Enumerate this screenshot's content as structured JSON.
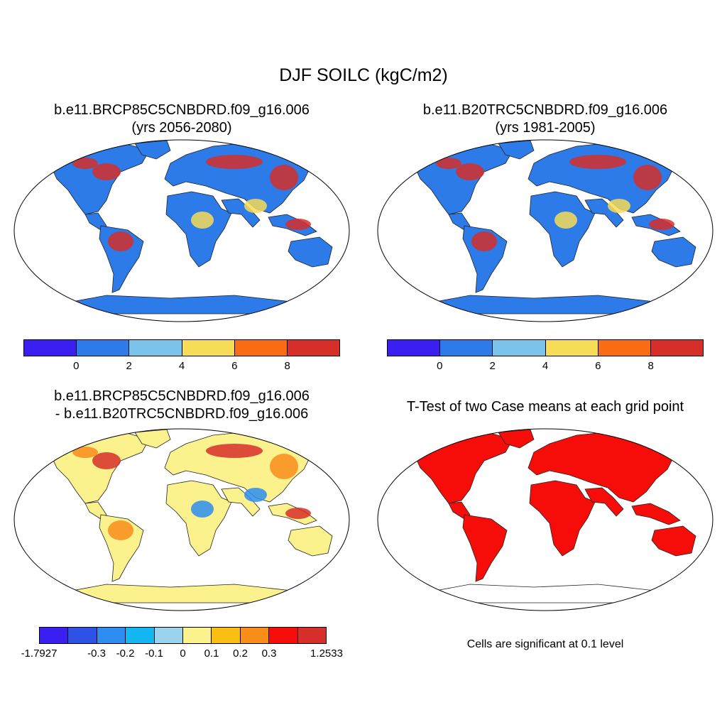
{
  "main_title": "DJF SOILC (kgC/m2)",
  "panels": [
    {
      "title_line1": "b.e11.BRCP85C5CNBDRD.f09_g16.006",
      "title_line2": "(yrs 2056-2080)"
    },
    {
      "title_line1": "b.e11.B20TRC5CNBDRD.f09_g16.006",
      "title_line2": "(yrs 1981-2005)"
    },
    {
      "title_line1": "b.e11.BRCP85C5CNBDRD.f09_g16.006",
      "title_line2": "- b.e11.B20TRC5CNBDRD.f09_g16.006"
    },
    {
      "title_line1": "T-Test of two Case means at each grid point"
    }
  ],
  "colorbars": {
    "absolute": {
      "colors": [
        "#3a1ef2",
        "#2c7be8",
        "#7cc3ec",
        "#f7dc57",
        "#f96c13",
        "#d62f29"
      ],
      "labels": [
        "0",
        "2",
        "4",
        "6",
        "8"
      ]
    },
    "difference": {
      "colors": [
        "#3a1ef2",
        "#2e52e6",
        "#2d8df0",
        "#14b7f2",
        "#9bd3ee",
        "#fbf18d",
        "#f9be12",
        "#f98d1a",
        "#f60d0a",
        "#d62f29"
      ],
      "labels": [
        "-1.7927",
        "-0.3",
        "-0.2",
        "-0.1",
        "0",
        "0.1",
        "0.2",
        "0.3",
        "1.2533"
      ]
    }
  },
  "significance_note": "Cells are significant at 0.1 level",
  "colors": {
    "ocean": "#ffffff",
    "antarctica_abs": "#2c7be8",
    "antarctica_diff": "#fbf18d",
    "significant": "#f60d0a"
  }
}
